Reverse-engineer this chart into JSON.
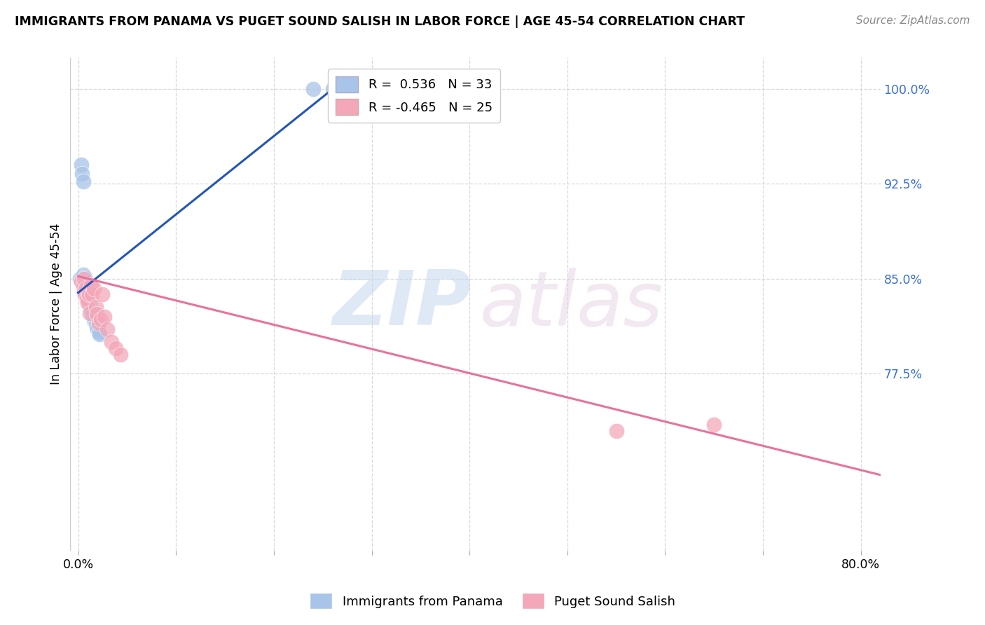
{
  "title": "IMMIGRANTS FROM PANAMA VS PUGET SOUND SALISH IN LABOR FORCE | AGE 45-54 CORRELATION CHART",
  "source": "Source: ZipAtlas.com",
  "ylabel": "In Labor Force | Age 45-54",
  "xlim_min": -0.008,
  "xlim_max": 0.82,
  "ylim_min": 0.635,
  "ylim_max": 1.025,
  "ytick_vals": [
    0.775,
    0.85,
    0.925,
    1.0
  ],
  "ytick_labels": [
    "77.5%",
    "85.0%",
    "92.5%",
    "100.0%"
  ],
  "xtick_vals": [
    0.0,
    0.1,
    0.2,
    0.3,
    0.4,
    0.5,
    0.6,
    0.7,
    0.8
  ],
  "xtick_labels": [
    "0.0%",
    "",
    "",
    "",
    "",
    "",
    "",
    "",
    "80.0%"
  ],
  "legend1_r": "0.536",
  "legend1_n": "33",
  "legend2_r": "-0.465",
  "legend2_n": "25",
  "color_blue": "#a8c4e8",
  "color_pink": "#f4a7b9",
  "line_blue": "#2255bb",
  "line_pink": "#e8729a",
  "blue_scatter_x": [
    0.002,
    0.003,
    0.004,
    0.005,
    0.005,
    0.005,
    0.006,
    0.006,
    0.007,
    0.007,
    0.007,
    0.008,
    0.008,
    0.009,
    0.009,
    0.01,
    0.01,
    0.011,
    0.011,
    0.012,
    0.012,
    0.013,
    0.014,
    0.015,
    0.016,
    0.017,
    0.018,
    0.019,
    0.02,
    0.021,
    0.022,
    0.24,
    0.26
  ],
  "blue_scatter_y": [
    0.85,
    0.94,
    0.933,
    0.927,
    0.853,
    0.848,
    0.845,
    0.848,
    0.842,
    0.846,
    0.851,
    0.84,
    0.844,
    0.838,
    0.842,
    0.835,
    0.84,
    0.832,
    0.837,
    0.829,
    0.833,
    0.826,
    0.824,
    0.821,
    0.818,
    0.816,
    0.814,
    0.812,
    0.81,
    0.808,
    0.806,
    1.0,
    1.0
  ],
  "pink_scatter_x": [
    0.003,
    0.005,
    0.006,
    0.006,
    0.007,
    0.008,
    0.009,
    0.01,
    0.011,
    0.012,
    0.013,
    0.014,
    0.016,
    0.018,
    0.019,
    0.021,
    0.023,
    0.025,
    0.027,
    0.03,
    0.034,
    0.038,
    0.043,
    0.55,
    0.65
  ],
  "pink_scatter_y": [
    0.848,
    0.844,
    0.84,
    0.85,
    0.837,
    0.843,
    0.834,
    0.831,
    0.838,
    0.823,
    0.845,
    0.838,
    0.842,
    0.828,
    0.822,
    0.815,
    0.818,
    0.838,
    0.82,
    0.81,
    0.8,
    0.795,
    0.79,
    0.73,
    0.735
  ],
  "blue_line_x": [
    0.0,
    0.265
  ],
  "blue_line_y": [
    0.839,
    1.003
  ],
  "pink_line_x": [
    0.0,
    0.82
  ],
  "pink_line_y": [
    0.852,
    0.695
  ],
  "background_color": "#ffffff",
  "grid_color": "#d8d8d8"
}
